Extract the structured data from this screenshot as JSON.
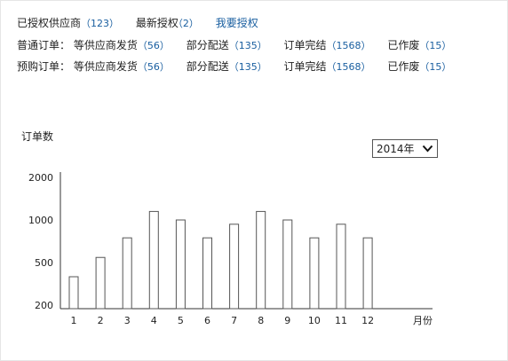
{
  "summary": {
    "authorized_suppliers": {
      "label": "已授权供应商",
      "count": "123"
    },
    "latest_auth": {
      "label": "最新授权",
      "count": "2"
    },
    "request_auth_link": "我要授权"
  },
  "normal_orders": {
    "label": "普通订单：",
    "items": [
      {
        "label": "等供应商发货",
        "count": "56"
      },
      {
        "label": "部分配送",
        "count": "135"
      },
      {
        "label": "订单完结",
        "count": "1568"
      },
      {
        "label": "已作废",
        "count": "15"
      }
    ]
  },
  "preorders": {
    "label": "预购订单：",
    "items": [
      {
        "label": "等供应商发货",
        "count": "56"
      },
      {
        "label": "部分配送",
        "count": "135"
      },
      {
        "label": "订单完结",
        "count": "1568"
      },
      {
        "label": "已作废",
        "count": "15"
      }
    ]
  },
  "year_select": {
    "value": "2014年",
    "icon": "chevron-down-icon"
  },
  "chart_data": {
    "type": "bar",
    "ylabel": "订单数",
    "xlabel": "月份",
    "categories": [
      "1",
      "2",
      "3",
      "4",
      "5",
      "6",
      "7",
      "8",
      "9",
      "10",
      "11",
      "12"
    ],
    "values": [
      400,
      560,
      790,
      1200,
      1000,
      790,
      950,
      1200,
      1000,
      790,
      950,
      790
    ],
    "yticks": [
      {
        "label": "200",
        "value": 200
      },
      {
        "label": "500",
        "value": 500
      },
      {
        "label": "1000",
        "value": 1000
      },
      {
        "label": "2000",
        "value": 2000
      }
    ],
    "grid": false,
    "colors": {
      "bar_fill": "#ffffff",
      "bar_stroke": "#555555",
      "axis": "#333333"
    }
  }
}
